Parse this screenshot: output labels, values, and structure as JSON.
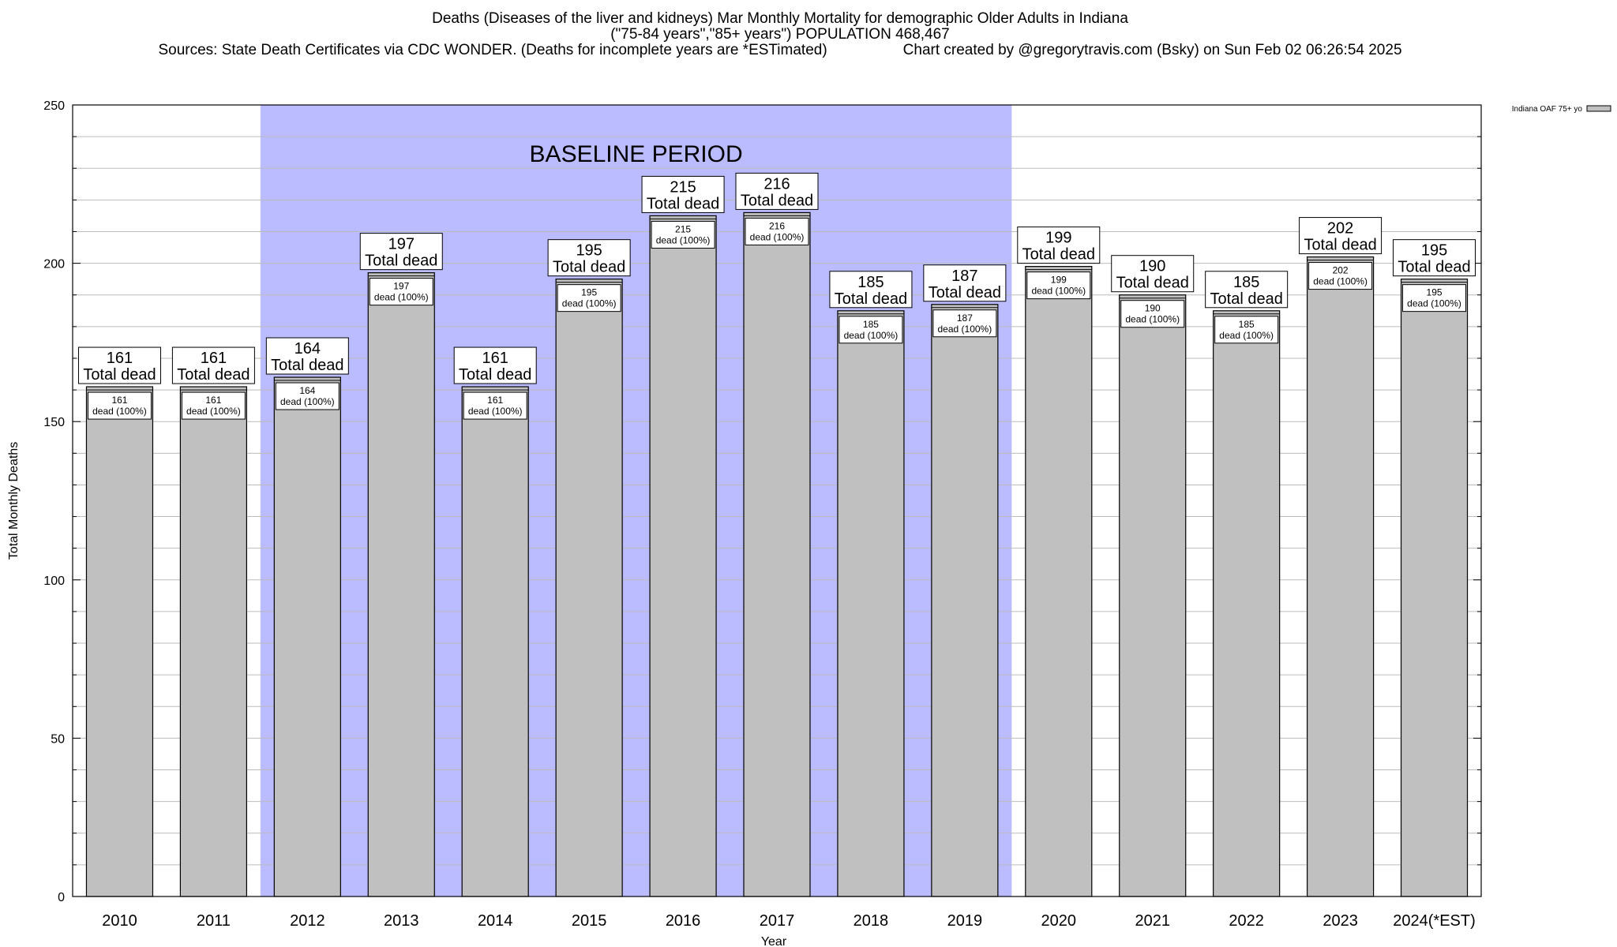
{
  "chart_data": {
    "type": "bar",
    "title": "Deaths (Diseases of the liver and kidneys) Mar Monthly Mortality for demographic Older Adults in Indiana",
    "subtitle": "(\"75-84 years\",\"85+ years\") POPULATION 468,467",
    "sources": "Sources: State Death Certificates via CDC WONDER. (Deaths for incomplete years are *ESTimated)",
    "credit": "Chart created by @gregorytravis.com (Bsky) on Sun Feb 02 06:26:54 2025",
    "xlabel": "Year",
    "ylabel": "Total Monthly Deaths",
    "ylim": [
      0,
      250
    ],
    "yticks": [
      0,
      50,
      100,
      150,
      200,
      250
    ],
    "grid": true,
    "legend": {
      "label": "Indiana OAF 75+ yo",
      "placement": "top-right",
      "color": "#c0c0c0"
    },
    "baseline": {
      "label": "BASELINE PERIOD",
      "from": "2012",
      "to": "2019",
      "color": "#bbbbff"
    },
    "categories": [
      "2010",
      "2011",
      "2012",
      "2013",
      "2014",
      "2015",
      "2016",
      "2017",
      "2018",
      "2019",
      "2020",
      "2021",
      "2022",
      "2023",
      "2024(*EST)"
    ],
    "values": [
      161,
      161,
      164,
      197,
      161,
      195,
      215,
      216,
      185,
      187,
      199,
      190,
      185,
      202,
      195
    ],
    "total_label": "Total dead",
    "inner_label": "dead (100%)",
    "bar_color": "#c0c0c0"
  }
}
